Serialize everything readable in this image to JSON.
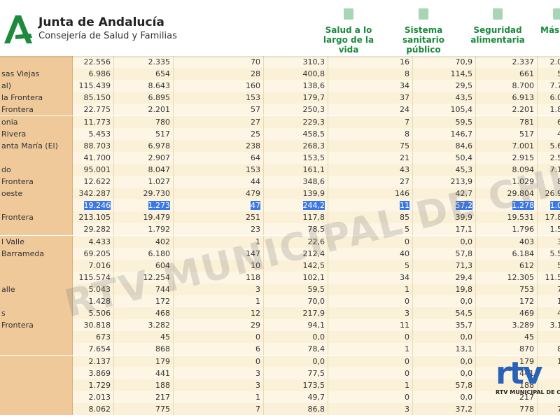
{
  "header": {
    "brand": "Junta de Andalucía",
    "department": "Consejería de Salud y Familias",
    "columns": [
      "Salud a lo largo de la vida",
      "Sistema sanitario público",
      "Seguridad alimentaria",
      "Más t"
    ]
  },
  "table": {
    "highlighted_row": 12,
    "rows": [
      [
        null,
        "22.556",
        "2.335",
        "70",
        "310,3",
        "16",
        "70,9",
        "2.337",
        "2.0"
      ],
      [
        "sas Viejas",
        "6.986",
        "654",
        "28",
        "400,8",
        "8",
        "114,5",
        "661",
        "5"
      ],
      [
        "al)",
        "115.439",
        "8.643",
        "160",
        "138,6",
        "34",
        "29,5",
        "8.700",
        "7.7"
      ],
      [
        "la Frontera",
        "85.150",
        "6.895",
        "153",
        "179,7",
        "37",
        "43,5",
        "6.913",
        "6.0"
      ],
      [
        "Frontera",
        "22.775",
        "2.201",
        "57",
        "250,3",
        "24",
        "105,4",
        "2.201",
        "1.8"
      ],
      [
        "onia",
        "11.773",
        "780",
        "27",
        "229,3",
        "7",
        "59,5",
        "781",
        "6"
      ],
      [
        "Rivera",
        "5.453",
        "517",
        "25",
        "458,5",
        "8",
        "146,7",
        "517",
        "4"
      ],
      [
        "anta María (El)",
        "88.703",
        "6.978",
        "238",
        "268,3",
        "75",
        "84,6",
        "7.001",
        "5.6"
      ],
      [
        null,
        "41.700",
        "2.907",
        "64",
        "153,5",
        "21",
        "50,4",
        "2.915",
        "2.5"
      ],
      [
        "do",
        "95.001",
        "8.047",
        "153",
        "161,1",
        "43",
        "45,3",
        "8.094",
        "7.1"
      ],
      [
        "Frontera",
        "12.622",
        "1.027",
        "44",
        "348,6",
        "27",
        "213,9",
        "1.029",
        "8"
      ],
      [
        "oeste",
        "342.287",
        "29.730",
        "479",
        "139,9",
        "146",
        "42,7",
        "29.804",
        "26.9"
      ],
      [
        null,
        "19.246",
        "1.273",
        "47",
        "244,2",
        "11",
        "57,2",
        "1.278",
        "1.0"
      ],
      [
        "Frontera",
        "213.105",
        "19.479",
        "251",
        "117,8",
        "85",
        "39,9",
        "19.531",
        "17.8"
      ],
      [
        null,
        "29.282",
        "1.792",
        "23",
        "78,5",
        "5",
        "17,1",
        "1.796",
        "1.5"
      ],
      [
        "l Valle",
        "4.433",
        "402",
        "1",
        "22,6",
        "0",
        "0,0",
        "403",
        "3"
      ],
      [
        "Barrameda",
        "69.205",
        "6.180",
        "147",
        "212,4",
        "40",
        "57,8",
        "6.184",
        "5.5"
      ],
      [
        null,
        "7.016",
        "604",
        "10",
        "142,5",
        "5",
        "71,3",
        "612",
        "5"
      ],
      [
        null,
        "115.574",
        "12.254",
        "118",
        "102,1",
        "34",
        "29,4",
        "12.305",
        "11.5"
      ],
      [
        "alle",
        "5.043",
        "744",
        "3",
        "59,5",
        "1",
        "19,8",
        "753",
        "7"
      ],
      [
        null,
        "1.428",
        "172",
        "1",
        "70,0",
        "0",
        "0,0",
        "172",
        "1"
      ],
      [
        "s",
        "5.506",
        "468",
        "12",
        "217,9",
        "3",
        "54,5",
        "469",
        "4"
      ],
      [
        "Frontera",
        "30.818",
        "3.282",
        "29",
        "94,1",
        "11",
        "35,7",
        "3.289",
        "3.1"
      ],
      [
        null,
        "673",
        "45",
        "0",
        "0,0",
        "0",
        "0,0",
        "45",
        null
      ],
      [
        null,
        "7.654",
        "868",
        "6",
        "78,4",
        "1",
        "13,1",
        "870",
        "8"
      ],
      [
        null,
        "2.137",
        "179",
        "0",
        "0,0",
        "0",
        "0,0",
        "179",
        "1"
      ],
      [
        null,
        "3.869",
        "441",
        "3",
        "77,5",
        "0",
        "0,0",
        "441",
        null
      ],
      [
        null,
        "1.729",
        "188",
        "3",
        "173,5",
        "1",
        "57,8",
        "188",
        null
      ],
      [
        null,
        "2.013",
        "217",
        "1",
        "49,7",
        "0",
        "0,0",
        "217",
        null
      ],
      [
        null,
        "8.062",
        "775",
        "7",
        "86,8",
        "3",
        "37,2",
        "778",
        "7"
      ]
    ]
  },
  "watermark": "RTV MUNICIPAL DE CHIPIONA",
  "corner_logo": {
    "mark": "rtv",
    "text": "RTV MUNICIPAL DE CHIPIONA"
  }
}
